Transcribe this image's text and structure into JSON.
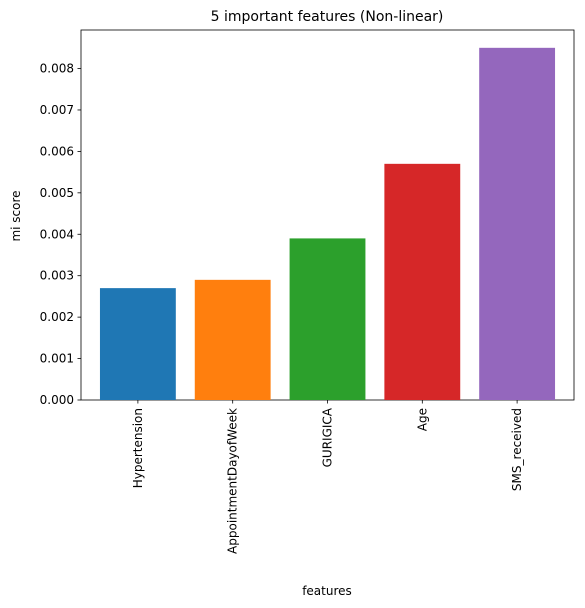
{
  "chart_data": {
    "type": "bar",
    "title": "5 important features (Non-linear)",
    "xlabel": "features",
    "ylabel": "mi score",
    "categories": [
      "Hypertension",
      "AppointmentDayofWeek",
      "GURIGICA",
      "Age",
      "SMS_received"
    ],
    "values": [
      0.0027,
      0.0029,
      0.0039,
      0.0057,
      0.0085
    ],
    "colors": [
      "#1f77b4",
      "#ff7f0e",
      "#2ca02c",
      "#d62728",
      "#9467bd"
    ],
    "ylim": [
      0,
      0.00893
    ],
    "yticks": [
      "0.000",
      "0.001",
      "0.002",
      "0.003",
      "0.004",
      "0.005",
      "0.006",
      "0.007",
      "0.008"
    ],
    "ytick_values": [
      0,
      0.001,
      0.002,
      0.003,
      0.004,
      0.005,
      0.006,
      0.007,
      0.008
    ],
    "grid": false,
    "legend": "none"
  }
}
